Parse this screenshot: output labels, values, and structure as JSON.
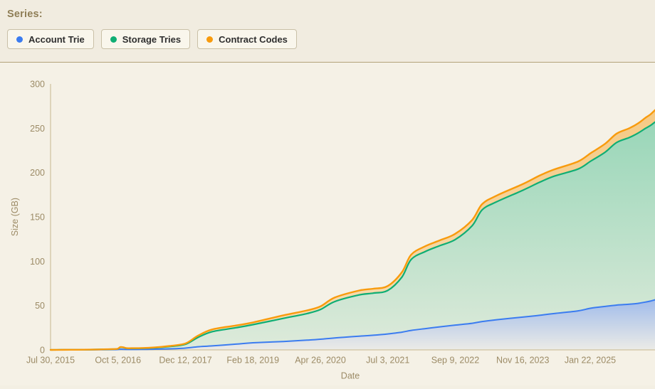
{
  "header": {
    "series_label": "Series:",
    "legend": [
      {
        "label": "Account Trie",
        "color": "#3b7cf0"
      },
      {
        "label": "Storage Tries",
        "color": "#0fae74"
      },
      {
        "label": "Contract Codes",
        "color": "#f89b0d"
      }
    ]
  },
  "chart_data": {
    "type": "area",
    "stacked": true,
    "title": "",
    "xlabel": "Date",
    "ylabel": "Size (GB)",
    "ylim": [
      0,
      300
    ],
    "yticks": [
      0,
      50,
      100,
      150,
      200,
      250,
      300
    ],
    "xtick_labels": [
      "Jul 30, 2015",
      "Oct 5, 2016",
      "Dec 12, 2017",
      "Feb 18, 2019",
      "Apr 26, 2020",
      "Jul 3, 2021",
      "Sep 9, 2022",
      "Nov 16, 2023",
      "Jan 22, 2025"
    ],
    "xtick_positions_days": [
      0,
      433,
      866,
      1299,
      1732,
      2165,
      2598,
      3031,
      3464
    ],
    "x_domain": [
      0,
      3880
    ],
    "x_unit": "days since Jul 30, 2015",
    "grid": false,
    "legend_position": "top-left",
    "x_days": [
      0,
      62,
      124,
      215,
      307,
      399,
      430,
      443,
      452,
      468,
      490,
      520,
      580,
      672,
      764,
      866,
      946,
      1037,
      1190,
      1299,
      1494,
      1646,
      1732,
      1824,
      1981,
      2071,
      2164,
      2255,
      2315,
      2406,
      2498,
      2598,
      2706,
      2771,
      2863,
      3031,
      3138,
      3233,
      3386,
      3468,
      3560,
      3634,
      3715,
      3771,
      3820,
      3850,
      3880
    ],
    "series": [
      {
        "name": "Account Trie",
        "color": "#3b7cf0",
        "values": [
          0.02,
          0.05,
          0.08,
          0.12,
          0.2,
          0.3,
          0.4,
          0.65,
          0.75,
          0.65,
          0.5,
          0.5,
          0.55,
          0.8,
          1.2,
          2.0,
          3.5,
          4.5,
          6.5,
          8,
          9.5,
          11,
          12,
          13.5,
          15.5,
          16.5,
          18,
          20,
          22,
          24,
          26,
          28,
          30,
          32,
          34,
          37,
          39,
          41,
          44,
          47,
          49,
          50.5,
          51.5,
          52.5,
          54,
          55,
          56.5
        ]
      },
      {
        "name": "Storage Tries",
        "color": "#0fae74",
        "values": [
          0.01,
          0.03,
          0.05,
          0.1,
          0.25,
          0.5,
          0.7,
          1.9,
          2.35,
          2.0,
          1.25,
          1.2,
          1.25,
          1.6,
          2.6,
          4.3,
          10.5,
          16,
          18.5,
          20.5,
          26,
          30,
          33.5,
          41,
          46.5,
          47.5,
          49,
          62,
          80,
          87,
          91.5,
          96.5,
          110,
          126,
          133,
          143,
          150,
          155,
          160,
          166,
          174,
          183.5,
          188,
          192,
          196,
          198,
          200.5
        ]
      },
      {
        "name": "Contract Codes",
        "color": "#f89b0d",
        "values": [
          0.005,
          0.01,
          0.02,
          0.03,
          0.05,
          0.1,
          0.12,
          0.15,
          0.18,
          0.2,
          0.2,
          0.22,
          0.25,
          0.4,
          0.65,
          0.9,
          2.0,
          2.5,
          2.5,
          2.5,
          3.5,
          3.5,
          3.5,
          4.5,
          5,
          5,
          5,
          5.5,
          5.5,
          6,
          6,
          6.5,
          6.5,
          6.5,
          7,
          7,
          7.5,
          7.5,
          8.5,
          9,
          9.5,
          10,
          10.5,
          11,
          12,
          12.5,
          13.5
        ]
      }
    ]
  },
  "colors": {
    "page_bg": "#f3efe3",
    "header_bg": "#f1ece0",
    "chart_bg": "#f5f1e6",
    "divider": "#b3a27a",
    "axis": "#c7b68e",
    "tick_text": "#9c8b66",
    "chip_bg": "#f9f6ec",
    "chip_border": "#c9c0a7",
    "chip_text": "#2f2f2f",
    "series_label_text": "#8f7e56"
  }
}
